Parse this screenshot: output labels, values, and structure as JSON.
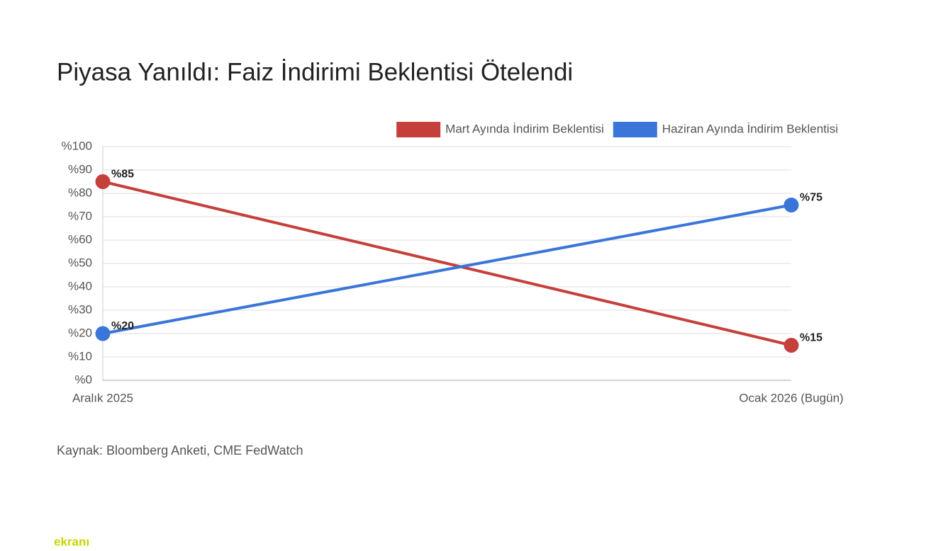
{
  "chart_data": {
    "type": "line",
    "title": "Piyasa Yanıldı: Faiz İndirimi Beklentisi Ötelendi",
    "categories": [
      "Aralık 2025",
      "Ocak 2026 (Bugün)"
    ],
    "series": [
      {
        "name": "Mart Ayında İndirim Beklentisi",
        "color": "#c5403a",
        "values": [
          85,
          15
        ],
        "value_labels": [
          "%85",
          "%15"
        ]
      },
      {
        "name": "Haziran Ayında İndirim Beklentisi",
        "color": "#3a75d9",
        "values": [
          20,
          75
        ],
        "value_labels": [
          "%20",
          "%75"
        ]
      }
    ],
    "ylim": [
      0,
      100
    ],
    "yticks": [
      {
        "value": 0,
        "label": "%0"
      },
      {
        "value": 10,
        "label": "%10"
      },
      {
        "value": 20,
        "label": "%20"
      },
      {
        "value": 30,
        "label": "%30"
      },
      {
        "value": 40,
        "label": "%40"
      },
      {
        "value": 50,
        "label": "%50"
      },
      {
        "value": 60,
        "label": "%60"
      },
      {
        "value": 70,
        "label": "%70"
      },
      {
        "value": 80,
        "label": "%80"
      },
      {
        "value": 90,
        "label": "%90"
      },
      {
        "value": 100,
        "label": "%100"
      }
    ],
    "grid": true,
    "legend": "top-right",
    "source": "Kaynak: Bloomberg Anketi, CME FedWatch"
  },
  "branding": "ekranı"
}
